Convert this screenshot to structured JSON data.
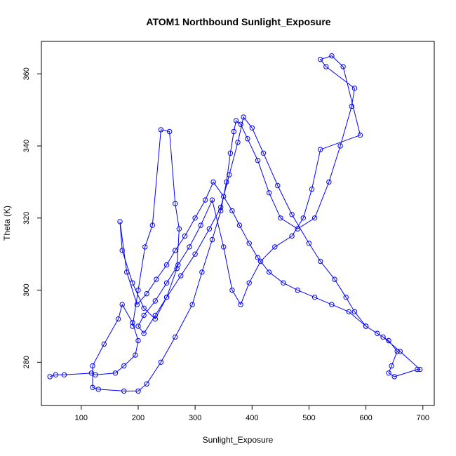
{
  "chart_data": {
    "type": "scatter",
    "title": "ATOM1 Northbound Sunlight_Exposure",
    "xlabel": "Sunlight_Exposure",
    "ylabel": "Theta (K)",
    "xlim": [
      30,
      720
    ],
    "ylim": [
      268,
      369
    ],
    "xticks": [
      100,
      200,
      300,
      400,
      500,
      600,
      700
    ],
    "yticks": [
      280,
      300,
      320,
      340,
      360
    ],
    "colors": {
      "series": "#0000ff",
      "axis": "#000000",
      "background": "#ffffff"
    },
    "marker": "open-circle",
    "line": "connected",
    "grid": false,
    "series": [
      {
        "x": [
          45,
          55,
          70,
          118,
          125,
          160,
          175,
          195,
          200,
          190,
          172,
          165,
          140,
          120,
          120,
          130,
          175,
          200,
          215,
          240,
          265,
          295,
          312,
          330,
          345,
          355,
          362,
          368,
          372,
          380,
          392,
          410,
          430,
          450,
          480,
          510,
          535,
          555,
          575,
          580,
          530,
          520,
          540,
          560,
          590,
          520,
          505,
          490,
          470,
          440,
          415,
          395,
          380,
          365,
          350,
          330,
          310,
          290,
          270,
          250,
          230,
          210,
          200,
          210,
          230,
          250,
          275,
          300,
          325,
          345,
          360,
          375,
          385,
          400,
          420,
          445,
          470,
          500,
          520,
          545,
          565,
          580,
          600,
          620,
          640,
          655,
          645,
          640,
          650,
          690,
          695,
          660,
          630,
          600,
          570,
          540,
          510,
          480,
          455,
          430,
          410,
          395,
          378,
          365,
          350,
          332,
          318,
          300,
          282,
          265,
          250,
          232,
          215,
          198,
          180,
          168,
          172,
          190,
          210,
          230,
          250,
          268,
          272,
          265,
          255,
          240,
          225,
          212,
          200,
          190
        ],
        "y": [
          276,
          276.5,
          276.5,
          277,
          276.5,
          277,
          279,
          282,
          286,
          291,
          296,
          292,
          285,
          279,
          273,
          272.5,
          272,
          272,
          274,
          280,
          287,
          296,
          305,
          314,
          322,
          330,
          338,
          344,
          347,
          346,
          342,
          336,
          327,
          320,
          317,
          320,
          330,
          340,
          351,
          356,
          362,
          364,
          365,
          362,
          343,
          339,
          328,
          320,
          315,
          312,
          308,
          302,
          296,
          300,
          312,
          325,
          318,
          312,
          307,
          302,
          297,
          293,
          290,
          288,
          293,
          298,
          304,
          310,
          317,
          323,
          332,
          341,
          348,
          345,
          338,
          329,
          321,
          313,
          308,
          303,
          298,
          294,
          290,
          288,
          286,
          283,
          279,
          277,
          276,
          278,
          278,
          283,
          287,
          290,
          294,
          296,
          298,
          300,
          302,
          305,
          309,
          313,
          318,
          322,
          326,
          330,
          325,
          320,
          315,
          311,
          307,
          303,
          299,
          296,
          305,
          319,
          311,
          302,
          295,
          292,
          298,
          306,
          317,
          324,
          344,
          344.5,
          318,
          312,
          300,
          290
        ]
      }
    ]
  }
}
